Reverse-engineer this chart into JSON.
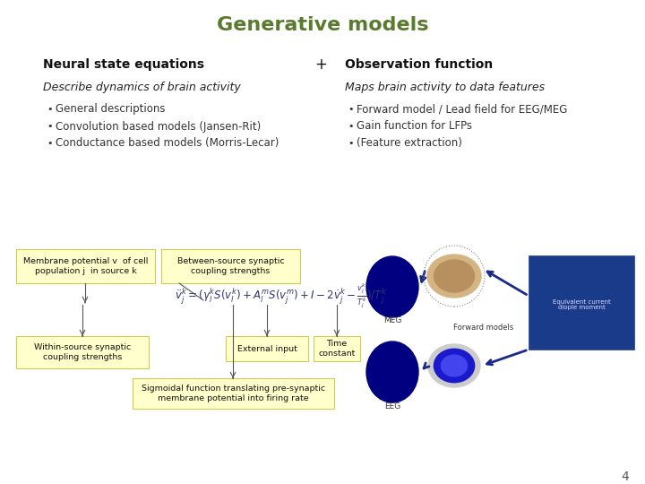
{
  "title": "Generative models",
  "title_color": "#5a7a2e",
  "title_fontsize": 16,
  "bg_color": "#ffffff",
  "page_number": "4",
  "col1_header": "Neural state equations",
  "plus_sign": "+",
  "col2_header": "Observation function",
  "col1_subheader": "Describe dynamics of brain activity",
  "col2_subheader": "Maps brain activity to data features",
  "col1_bullets": [
    "General descriptions",
    "Convolution based models (Jansen-Rit)",
    "Conductance based models (Morris-Lecar)"
  ],
  "col2_bullets": [
    "Forward model / Lead field for EEG/MEG",
    "Gain function for LFPs",
    "(Feature extraction)"
  ],
  "equation_box_color": "#ffffcc",
  "equation_border_color": "#cccc55",
  "box1_label": "Membrane potential v  of cell\npopulation j  in source k",
  "box2_label": "Between-source synaptic\ncoupling strengths",
  "box3_label": "Within-source synaptic\ncoupling strengths",
  "box4_label": "External input",
  "box5_label": "Time\nconstant",
  "box6_label": "Sigmoidal function translating pre-synaptic\nmembrane potential into firing rate"
}
